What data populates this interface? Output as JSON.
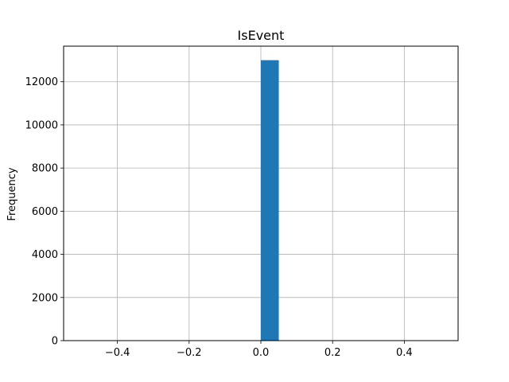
{
  "chart_data": {
    "type": "bar",
    "title": "IsEvent",
    "xlabel": "",
    "ylabel": "Frequency",
    "xlim": [
      -0.55,
      0.55
    ],
    "ylim": [
      0,
      13650
    ],
    "x_ticks": [
      -0.4,
      -0.2,
      0.0,
      0.2,
      0.4
    ],
    "x_tick_labels": [
      "−0.4",
      "−0.2",
      "0.0",
      "0.2",
      "0.4"
    ],
    "y_ticks": [
      0,
      2000,
      4000,
      6000,
      8000,
      10000,
      12000
    ],
    "y_tick_labels": [
      "0",
      "2000",
      "4000",
      "6000",
      "8000",
      "10000",
      "12000"
    ],
    "grid": true,
    "bars": [
      {
        "x_start": 0.0,
        "x_end": 0.05,
        "value": 13000
      }
    ],
    "bar_color": "#1f77b4"
  }
}
